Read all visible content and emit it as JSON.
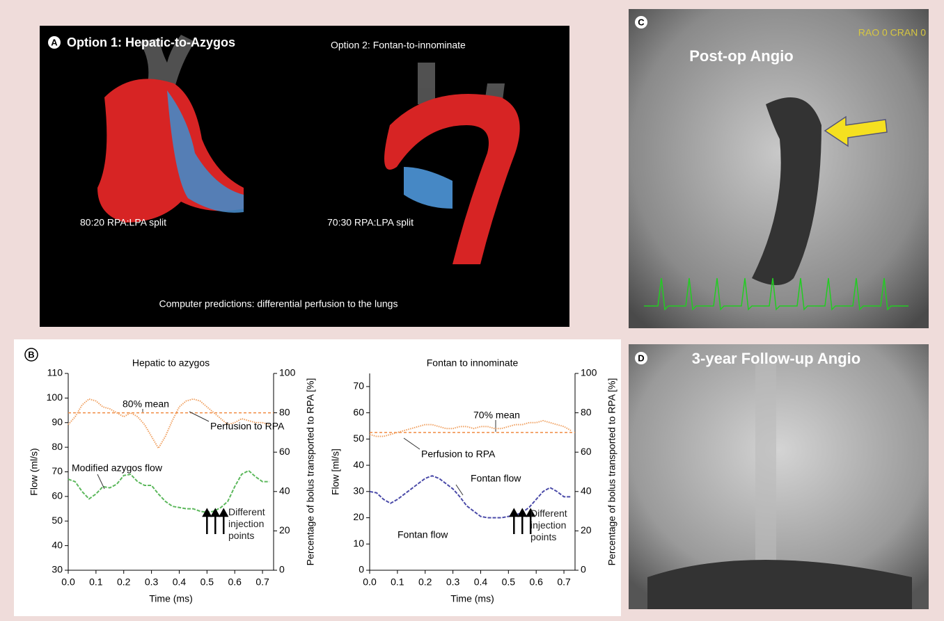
{
  "panels": {
    "a": {
      "label": "A",
      "title": "Option 1: Hepatic-to-Azygos",
      "option2": "Option 2: Fontan-to-innominate",
      "split1": "80:20 RPA:LPA split",
      "split2": "70:30 RPA:LPA split",
      "caption": "Computer predictions: differential perfusion to the lungs"
    },
    "b": {
      "label": "B"
    },
    "c": {
      "label": "C",
      "title": "Post-op Angio",
      "overlay": "RAO 0 CRAN 0"
    },
    "d": {
      "label": "D",
      "title": "3-year Follow-up Angio"
    }
  },
  "chart_data": [
    {
      "type": "line",
      "title": "Hepatic to azygos",
      "x_label": "Time (ms)",
      "y_label": "Flow (ml/s)",
      "y2_label": "Percentage of bolus transported to RPA [%]",
      "x": [
        0,
        0.025,
        0.05,
        0.075,
        0.1,
        0.125,
        0.15,
        0.175,
        0.2,
        0.225,
        0.25,
        0.275,
        0.3,
        0.325,
        0.35,
        0.375,
        0.4,
        0.425,
        0.45,
        0.475,
        0.5,
        0.525,
        0.55,
        0.575,
        0.6,
        0.625,
        0.65,
        0.675,
        0.7,
        0.725
      ],
      "series": [
        {
          "name": "Modified azygos flow",
          "color": "#5cb85c",
          "values": [
            67,
            66,
            62,
            59,
            61,
            64,
            63.5,
            65,
            68.5,
            69,
            66,
            64.5,
            64.5,
            61,
            58,
            56,
            55.5,
            55,
            55,
            54,
            53.5,
            54,
            55.5,
            58,
            64,
            69,
            70.5,
            68,
            66,
            66
          ]
        },
        {
          "name": "Perfusion to RPA",
          "color": "#f0a060",
          "axis": "y2",
          "values": [
            74,
            78,
            84,
            87,
            86,
            83,
            82,
            80,
            78,
            80,
            78,
            74,
            68,
            62,
            68,
            76,
            83,
            86,
            87,
            86,
            83,
            80,
            77,
            74,
            75,
            77,
            76,
            75,
            75,
            74
          ]
        }
      ],
      "mean": {
        "value": 80,
        "label": "80% mean",
        "color": "#f08a40"
      },
      "injection_points": [
        0.5,
        0.53,
        0.56
      ],
      "injection_label": "Different injection points",
      "xlim": [
        0,
        0.74
      ],
      "xticks": [
        {
          "value": 0,
          "label": "0.0"
        },
        0.1,
        0.2,
        0.3,
        0.4,
        0.5,
        0.6,
        0.7
      ],
      "ylim": [
        30,
        110
      ],
      "yticks": [
        30,
        40,
        50,
        60,
        70,
        80,
        90,
        100,
        110
      ],
      "y2lim": [
        0,
        100
      ],
      "y2ticks": [
        0,
        20,
        40,
        60,
        80,
        100
      ],
      "grid": false
    },
    {
      "type": "line",
      "title": "Fontan to innominate",
      "x_label": "Time (ms)",
      "y_label": "Flow [ml/s]",
      "y2_label": "Percentage of bolus transported to RPA [%]",
      "x": [
        0,
        0.025,
        0.05,
        0.075,
        0.1,
        0.125,
        0.15,
        0.175,
        0.2,
        0.225,
        0.25,
        0.275,
        0.3,
        0.325,
        0.35,
        0.375,
        0.4,
        0.425,
        0.45,
        0.475,
        0.5,
        0.525,
        0.55,
        0.575,
        0.6,
        0.625,
        0.65,
        0.675,
        0.7,
        0.725
      ],
      "series": [
        {
          "name": "Fontan flow",
          "color": "#4a4aa8",
          "values": [
            30,
            29.5,
            27,
            25.5,
            27,
            29,
            31,
            33,
            35,
            36,
            35,
            33,
            31,
            28,
            24.5,
            22.5,
            20.5,
            20,
            20,
            20,
            20.5,
            21,
            22,
            24,
            27,
            30,
            31.5,
            30,
            28,
            28
          ]
        },
        {
          "name": "Perfusion to RPA",
          "color": "#f0a060",
          "axis": "y2",
          "values": [
            69,
            68,
            68,
            69,
            70,
            71,
            72,
            73,
            74,
            74,
            73,
            72,
            72,
            73,
            73,
            72,
            73,
            73,
            72,
            72,
            73,
            74,
            74,
            75,
            75,
            76,
            75,
            74,
            73,
            71
          ]
        }
      ],
      "mean": {
        "value": 70,
        "label": "70% mean",
        "color": "#f08a40"
      },
      "annotations": [
        "Fontan flow"
      ],
      "injection_points": [
        0.52,
        0.55,
        0.58
      ],
      "injection_label": "Different injection points",
      "xlim": [
        0,
        0.74
      ],
      "xticks": [
        {
          "value": 0,
          "label": "0.0"
        },
        0.1,
        0.2,
        0.3,
        0.4,
        0.5,
        0.6,
        0.7
      ],
      "ylim": [
        0,
        75
      ],
      "yticks": [
        0,
        10,
        20,
        30,
        40,
        50,
        60,
        70
      ],
      "y2lim": [
        0,
        100
      ],
      "y2ticks": [
        0,
        20,
        40,
        60,
        80,
        100
      ],
      "grid": false
    }
  ]
}
